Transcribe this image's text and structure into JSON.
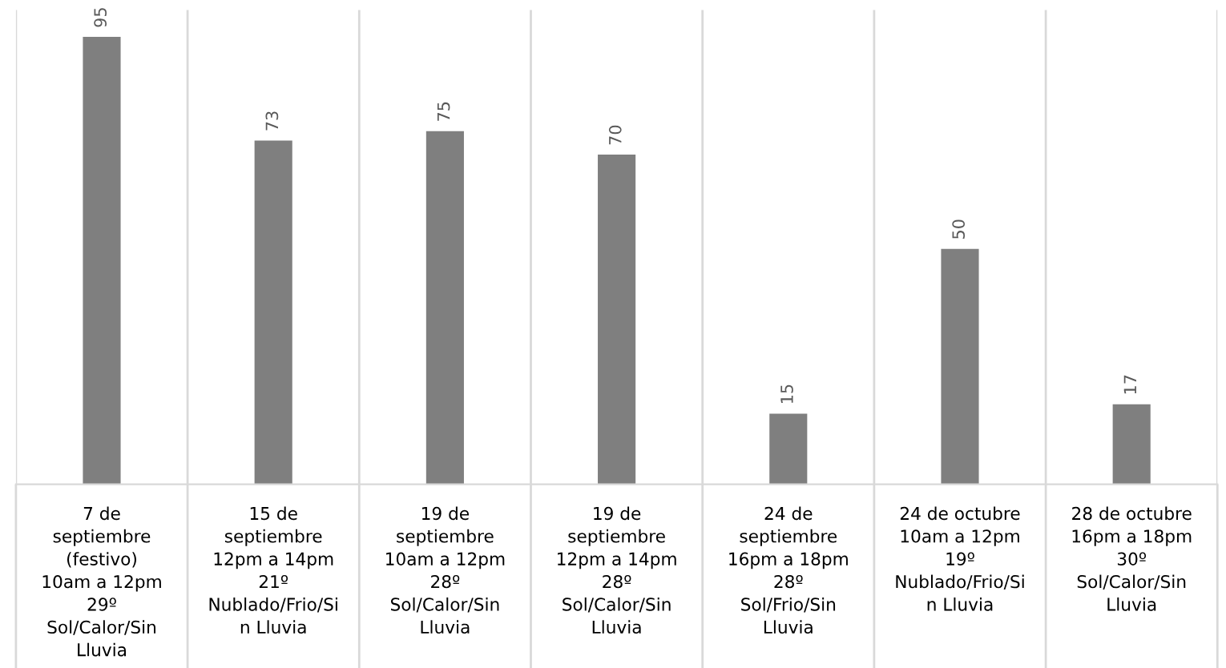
{
  "chart_data": {
    "type": "bar",
    "categories": [
      "7 de\nseptiembre\n(festivo)\n10am a 12pm\n29º\nSol/Calor/Sin\nLluvia",
      "15 de\nseptiembre\n12pm a 14pm\n21º\nNublado/Frio/Si\nn Lluvia",
      "19 de\nseptiembre\n10am a 12pm\n28º\nSol/Calor/Sin\nLluvia",
      "19 de\nseptiembre\n12pm a 14pm\n28º\nSol/Calor/Sin\nLluvia",
      "24 de\nseptiembre\n16pm a 18pm\n28º\nSol/Frio/Sin\nLluvia",
      "24 de octubre\n10am a 12pm\n19º\nNublado/Frio/Si\nn Lluvia",
      "28 de octubre\n16pm a 18pm\n30º\nSol/Calor/Sin\nLluvia"
    ],
    "values": [
      95,
      73,
      75,
      70,
      15,
      50,
      17
    ],
    "color": "#7f7f7f",
    "data_labels": true,
    "grid": "x"
  }
}
